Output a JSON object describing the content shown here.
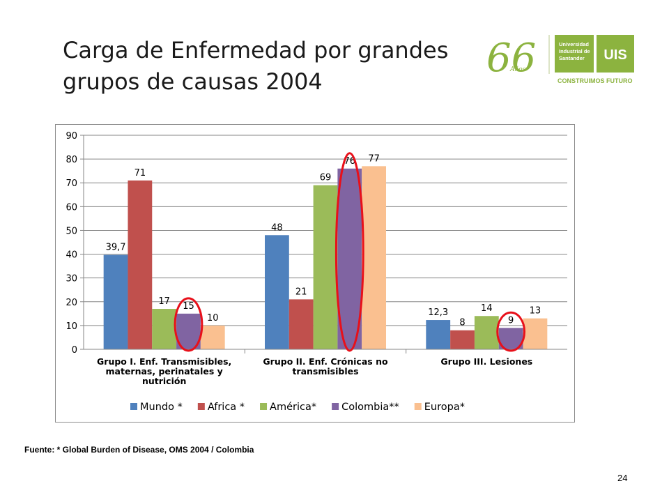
{
  "slide": {
    "title_line1": "Carga de Enfermedad por grandes",
    "title_line2": "grupos de causas 2004",
    "source": "Fuente: * Global Burden of Disease, OMS 2004 / Colombia",
    "page_number": "24"
  },
  "logo": {
    "anniversary": "66",
    "anniversary_word": "Años",
    "university_line1": "Universidad",
    "university_line2": "Industrial de",
    "university_line3": "Santander",
    "monogram": "UIS",
    "tagline": "CONSTRUIMOS FUTURO",
    "color": "#8cb33f"
  },
  "chart_data": {
    "type": "bar",
    "categories": [
      [
        "Grupo I. Enf. Transmisibles,",
        "maternas, perinatales y",
        "nutrición"
      ],
      [
        "Grupo II. Enf. Crónicas no",
        "transmisibles"
      ],
      [
        "Grupo III. Lesiones"
      ]
    ],
    "series": [
      {
        "name": "Mundo *",
        "values": [
          39.7,
          48,
          12.3
        ],
        "labels": [
          "39,7",
          "48",
          "12,3"
        ],
        "color": "#4f81bd"
      },
      {
        "name": "Africa *",
        "values": [
          71,
          21,
          8
        ],
        "labels": [
          "71",
          "21",
          "8"
        ],
        "color": "#c0504d"
      },
      {
        "name": "América*",
        "values": [
          17,
          69,
          14
        ],
        "labels": [
          "17",
          "69",
          "14"
        ],
        "color": "#9bbb59"
      },
      {
        "name": "Colombia**",
        "values": [
          15,
          76,
          9
        ],
        "labels": [
          "15",
          "76",
          "9"
        ],
        "color": "#8064a2"
      },
      {
        "name": "Europa*",
        "values": [
          10,
          77,
          13
        ],
        "labels": [
          "10",
          "77",
          "13"
        ],
        "color": "#fac090"
      }
    ],
    "ylim": [
      0,
      90
    ],
    "yticks": [
      0,
      10,
      20,
      30,
      40,
      50,
      60,
      70,
      80,
      90
    ],
    "grid": true,
    "legend": "bottom",
    "highlights": [
      {
        "category": 0,
        "series": 3
      },
      {
        "category": 1,
        "series": 3
      },
      {
        "category": 2,
        "series": 3
      }
    ],
    "highlight_color": "#e8101a"
  }
}
